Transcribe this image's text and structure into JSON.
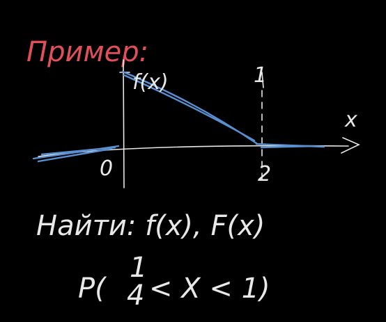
{
  "title": "Пример:",
  "graph": {
    "y_label": "f(x)",
    "x_label": "x",
    "origin": "0",
    "mark_numerator": "1",
    "mark_denominator": "2"
  },
  "task": {
    "line1": "Найти: f(x), F(x)",
    "line2": {
      "prefix": "P(",
      "numerator": "1",
      "denominator": "4",
      "rest": "< X < 1)"
    }
  }
}
